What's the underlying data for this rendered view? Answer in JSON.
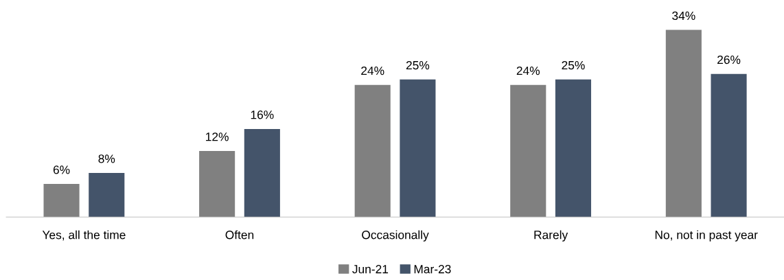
{
  "chart_data": {
    "type": "bar",
    "categories": [
      "Yes, all the time",
      "Often",
      "Occasionally",
      "Rarely",
      "No, not in past year"
    ],
    "series": [
      {
        "name": "Jun-21",
        "color": "#808080",
        "values": [
          6,
          12,
          24,
          24,
          34
        ],
        "value_labels": [
          "6%",
          "12%",
          "24%",
          "24%",
          "34%"
        ]
      },
      {
        "name": "Mar-23",
        "color": "#44546a",
        "values": [
          8,
          16,
          25,
          25,
          26
        ],
        "value_labels": [
          "8%",
          "16%",
          "25%",
          "25%",
          "26%"
        ]
      }
    ],
    "legend": "bottom"
  }
}
